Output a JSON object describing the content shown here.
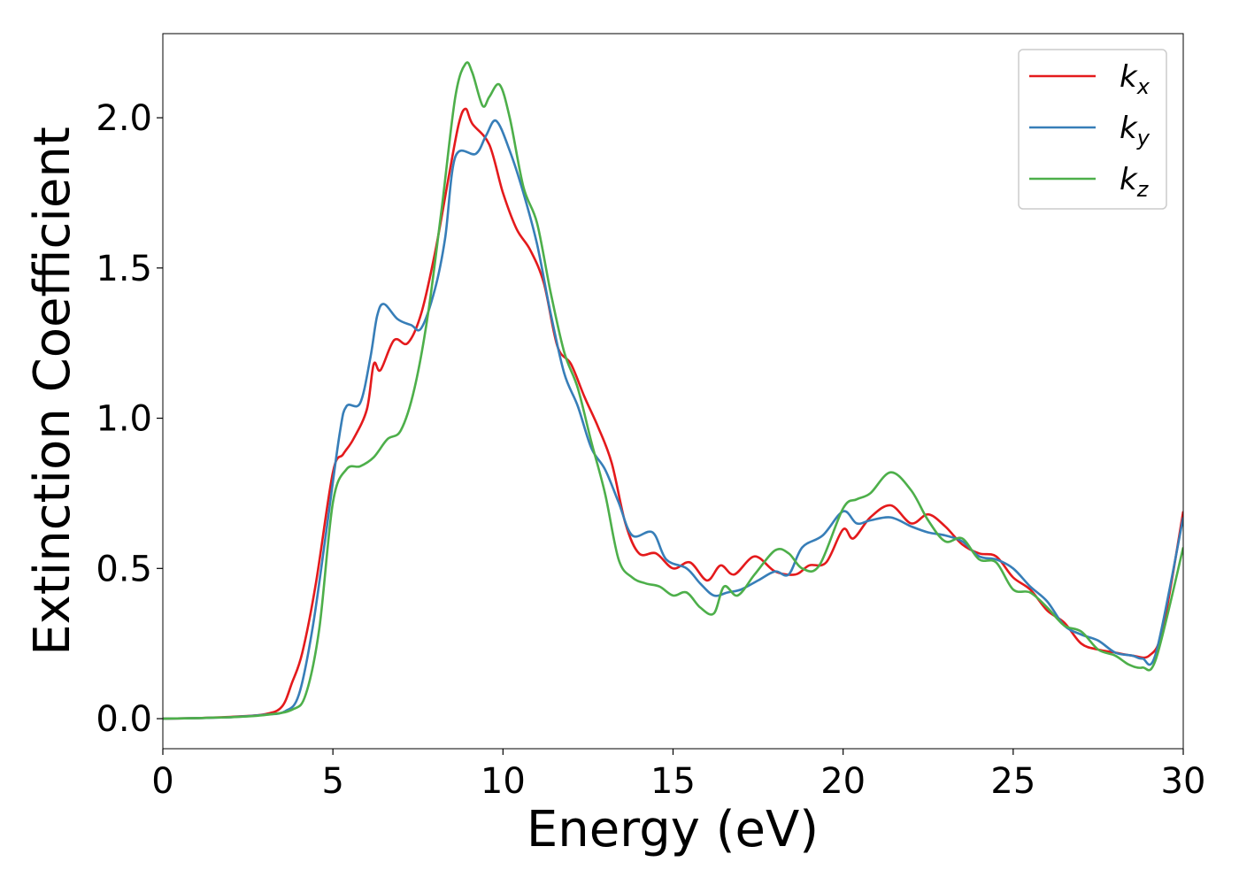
{
  "chart_data": {
    "type": "line",
    "xlabel": "Energy (eV)",
    "ylabel": "Extinction Coefficient",
    "xlim": [
      0,
      30
    ],
    "ylim": [
      -0.1,
      2.28
    ],
    "xticks": [
      0,
      5,
      10,
      15,
      20,
      25,
      30
    ],
    "xtick_labels": [
      "0",
      "5",
      "10",
      "15",
      "20",
      "25",
      "30"
    ],
    "yticks": [
      0.0,
      0.5,
      1.0,
      1.5,
      2.0
    ],
    "ytick_labels": [
      "0.0",
      "0.5",
      "1.0",
      "1.5",
      "2.0"
    ],
    "grid": false,
    "legend_position": "top-right",
    "series": [
      {
        "name": "kx",
        "base": "k",
        "sub": "x",
        "color": "#e41a1c",
        "points": [
          [
            0,
            0
          ],
          [
            1,
            0.002
          ],
          [
            2,
            0.006
          ],
          [
            3,
            0.015
          ],
          [
            3.5,
            0.04
          ],
          [
            3.8,
            0.12
          ],
          [
            4.1,
            0.22
          ],
          [
            4.5,
            0.45
          ],
          [
            5,
            0.82
          ],
          [
            5.3,
            0.88
          ],
          [
            5.6,
            0.93
          ],
          [
            6,
            1.03
          ],
          [
            6.2,
            1.18
          ],
          [
            6.4,
            1.16
          ],
          [
            6.8,
            1.26
          ],
          [
            7.2,
            1.25
          ],
          [
            7.6,
            1.35
          ],
          [
            8,
            1.55
          ],
          [
            8.4,
            1.8
          ],
          [
            8.7,
            1.98
          ],
          [
            8.9,
            2.03
          ],
          [
            9.1,
            1.98
          ],
          [
            9.6,
            1.91
          ],
          [
            10,
            1.75
          ],
          [
            10.4,
            1.63
          ],
          [
            10.8,
            1.56
          ],
          [
            11.2,
            1.45
          ],
          [
            11.6,
            1.24
          ],
          [
            12,
            1.18
          ],
          [
            12.4,
            1.07
          ],
          [
            12.8,
            0.97
          ],
          [
            13.2,
            0.85
          ],
          [
            13.6,
            0.65
          ],
          [
            14,
            0.55
          ],
          [
            14.5,
            0.55
          ],
          [
            15,
            0.5
          ],
          [
            15.5,
            0.52
          ],
          [
            16,
            0.46
          ],
          [
            16.4,
            0.51
          ],
          [
            16.8,
            0.48
          ],
          [
            17.4,
            0.54
          ],
          [
            18,
            0.49
          ],
          [
            18.6,
            0.48
          ],
          [
            19,
            0.51
          ],
          [
            19.5,
            0.52
          ],
          [
            20,
            0.63
          ],
          [
            20.3,
            0.6
          ],
          [
            20.8,
            0.67
          ],
          [
            21.4,
            0.71
          ],
          [
            22,
            0.65
          ],
          [
            22.5,
            0.68
          ],
          [
            23,
            0.64
          ],
          [
            23.5,
            0.58
          ],
          [
            24,
            0.55
          ],
          [
            24.5,
            0.54
          ],
          [
            25,
            0.47
          ],
          [
            25.5,
            0.43
          ],
          [
            26,
            0.36
          ],
          [
            26.5,
            0.32
          ],
          [
            27,
            0.25
          ],
          [
            27.5,
            0.23
          ],
          [
            28,
            0.22
          ],
          [
            28.5,
            0.21
          ],
          [
            29,
            0.21
          ],
          [
            29.4,
            0.3
          ],
          [
            30,
            0.69
          ]
        ]
      },
      {
        "name": "ky",
        "base": "k",
        "sub": "y",
        "color": "#377eb8",
        "points": [
          [
            0,
            0
          ],
          [
            1,
            0.002
          ],
          [
            2,
            0.005
          ],
          [
            3,
            0.013
          ],
          [
            3.6,
            0.025
          ],
          [
            4,
            0.08
          ],
          [
            4.4,
            0.3
          ],
          [
            4.8,
            0.62
          ],
          [
            5.2,
            0.95
          ],
          [
            5.4,
            1.04
          ],
          [
            5.8,
            1.05
          ],
          [
            6.1,
            1.2
          ],
          [
            6.3,
            1.34
          ],
          [
            6.5,
            1.38
          ],
          [
            6.9,
            1.33
          ],
          [
            7.3,
            1.31
          ],
          [
            7.6,
            1.3
          ],
          [
            8,
            1.43
          ],
          [
            8.3,
            1.6
          ],
          [
            8.6,
            1.87
          ],
          [
            9.2,
            1.88
          ],
          [
            9.5,
            1.94
          ],
          [
            9.8,
            1.99
          ],
          [
            10.2,
            1.89
          ],
          [
            10.6,
            1.75
          ],
          [
            11,
            1.58
          ],
          [
            11.4,
            1.35
          ],
          [
            11.8,
            1.15
          ],
          [
            12.2,
            1.04
          ],
          [
            12.6,
            0.9
          ],
          [
            13,
            0.83
          ],
          [
            13.4,
            0.72
          ],
          [
            13.8,
            0.61
          ],
          [
            14.4,
            0.62
          ],
          [
            14.8,
            0.53
          ],
          [
            15.4,
            0.5
          ],
          [
            15.8,
            0.45
          ],
          [
            16.2,
            0.41
          ],
          [
            16.6,
            0.42
          ],
          [
            17,
            0.43
          ],
          [
            17.5,
            0.46
          ],
          [
            18,
            0.49
          ],
          [
            18.4,
            0.48
          ],
          [
            18.8,
            0.57
          ],
          [
            19.4,
            0.61
          ],
          [
            20,
            0.69
          ],
          [
            20.4,
            0.65
          ],
          [
            20.8,
            0.66
          ],
          [
            21.4,
            0.67
          ],
          [
            22,
            0.64
          ],
          [
            22.5,
            0.62
          ],
          [
            23,
            0.61
          ],
          [
            23.5,
            0.59
          ],
          [
            24,
            0.54
          ],
          [
            24.5,
            0.53
          ],
          [
            25,
            0.5
          ],
          [
            25.5,
            0.44
          ],
          [
            26,
            0.39
          ],
          [
            26.5,
            0.31
          ],
          [
            27,
            0.28
          ],
          [
            27.5,
            0.26
          ],
          [
            28,
            0.22
          ],
          [
            28.5,
            0.21
          ],
          [
            28.8,
            0.2
          ],
          [
            29.2,
            0.22
          ],
          [
            30,
            0.67
          ]
        ]
      },
      {
        "name": "kz",
        "base": "k",
        "sub": "z",
        "color": "#4daf4a",
        "points": [
          [
            0,
            0
          ],
          [
            1,
            0.002
          ],
          [
            2,
            0.005
          ],
          [
            3,
            0.012
          ],
          [
            3.8,
            0.03
          ],
          [
            4.2,
            0.08
          ],
          [
            4.6,
            0.3
          ],
          [
            5,
            0.72
          ],
          [
            5.4,
            0.83
          ],
          [
            5.8,
            0.84
          ],
          [
            6.2,
            0.87
          ],
          [
            6.6,
            0.93
          ],
          [
            7,
            0.96
          ],
          [
            7.4,
            1.1
          ],
          [
            7.8,
            1.35
          ],
          [
            8.2,
            1.7
          ],
          [
            8.6,
            2.07
          ],
          [
            8.9,
            2.18
          ],
          [
            9.1,
            2.15
          ],
          [
            9.4,
            2.04
          ],
          [
            9.6,
            2.07
          ],
          [
            9.9,
            2.11
          ],
          [
            10.2,
            2.0
          ],
          [
            10.6,
            1.77
          ],
          [
            11,
            1.65
          ],
          [
            11.4,
            1.42
          ],
          [
            11.8,
            1.22
          ],
          [
            12.2,
            1.1
          ],
          [
            12.6,
            0.92
          ],
          [
            13,
            0.75
          ],
          [
            13.4,
            0.53
          ],
          [
            13.8,
            0.47
          ],
          [
            14.2,
            0.45
          ],
          [
            14.6,
            0.44
          ],
          [
            15,
            0.41
          ],
          [
            15.4,
            0.42
          ],
          [
            15.8,
            0.37
          ],
          [
            16.2,
            0.35
          ],
          [
            16.5,
            0.44
          ],
          [
            16.9,
            0.41
          ],
          [
            17.4,
            0.48
          ],
          [
            18,
            0.56
          ],
          [
            18.4,
            0.55
          ],
          [
            18.8,
            0.5
          ],
          [
            19.3,
            0.51
          ],
          [
            20,
            0.7
          ],
          [
            20.4,
            0.73
          ],
          [
            20.8,
            0.75
          ],
          [
            21.4,
            0.82
          ],
          [
            22,
            0.76
          ],
          [
            22.5,
            0.66
          ],
          [
            23,
            0.59
          ],
          [
            23.5,
            0.6
          ],
          [
            24,
            0.53
          ],
          [
            24.5,
            0.52
          ],
          [
            25,
            0.43
          ],
          [
            25.5,
            0.42
          ],
          [
            26,
            0.37
          ],
          [
            26.5,
            0.31
          ],
          [
            27,
            0.29
          ],
          [
            27.5,
            0.23
          ],
          [
            28,
            0.21
          ],
          [
            28.4,
            0.18
          ],
          [
            28.8,
            0.17
          ],
          [
            29.2,
            0.2
          ],
          [
            30,
            0.57
          ]
        ]
      }
    ]
  }
}
